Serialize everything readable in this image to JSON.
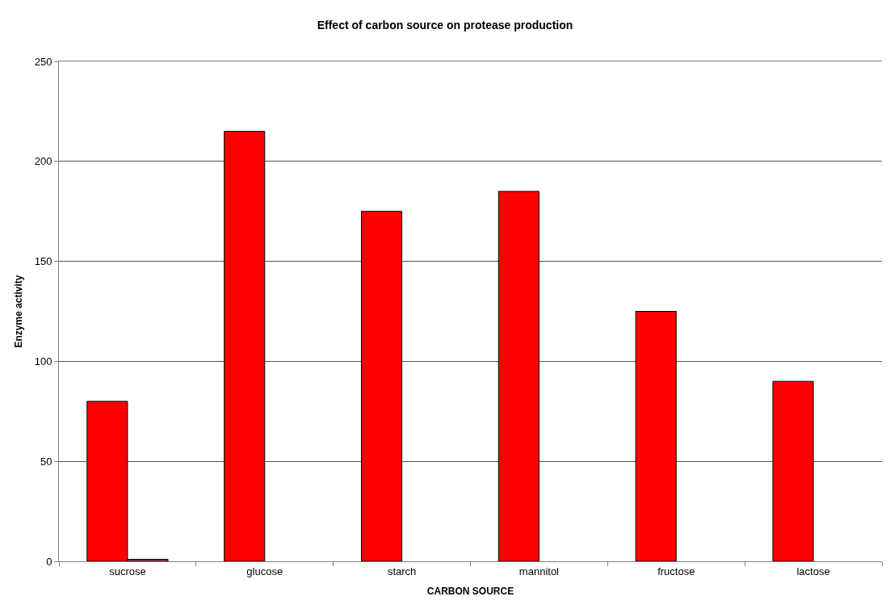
{
  "chart_data": {
    "type": "bar",
    "title": "Effect of carbon source on protease production",
    "xlabel": "CARBON SOURCE",
    "ylabel": "Enzyme activity",
    "categories": [
      "sucrose",
      "glucose",
      "starch",
      "mannitol",
      "fructose",
      "lactose"
    ],
    "series": [
      {
        "color": "#ff0000",
        "values": [
          80,
          215,
          175,
          185,
          125,
          90
        ]
      },
      {
        "color": "#993366",
        "values": [
          1,
          null,
          null,
          null,
          null,
          null
        ]
      }
    ],
    "ylim": [
      0,
      250
    ],
    "yticks": [
      0,
      50,
      100,
      150,
      200,
      250
    ],
    "grid": "y"
  }
}
